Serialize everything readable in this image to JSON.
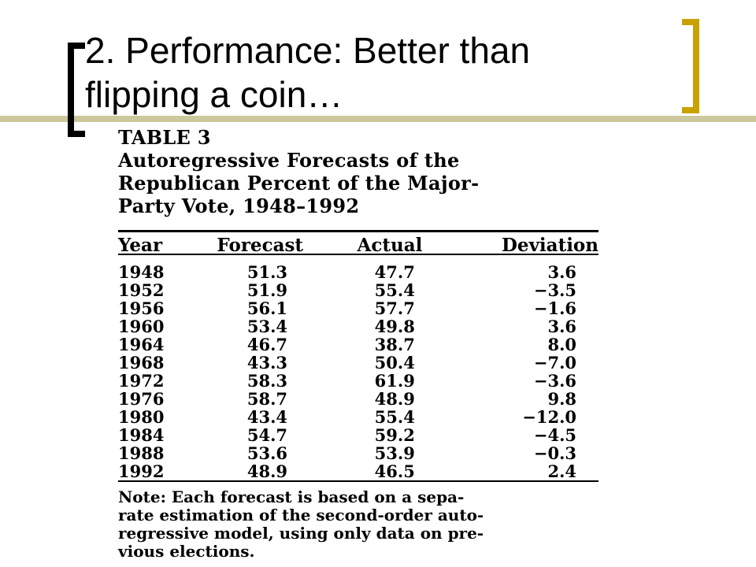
{
  "slide": {
    "title_lines": [
      "2. Performance: Better than",
      "flipping a coin…"
    ],
    "colors": {
      "left_bracket": "#000000",
      "right_bracket": "#c9a200",
      "rule_bar": "#cbc99b"
    }
  },
  "table": {
    "caption_lines": [
      "TABLE 3",
      "Autoregressive Forecasts of the",
      "Republican Percent of the Major-",
      "Party Vote, 1948–1992"
    ],
    "headers": {
      "year": "Year",
      "forecast": "Forecast",
      "actual": "Actual",
      "deviation": "Deviation"
    },
    "rows": [
      {
        "year": "1948",
        "forecast": "51.3",
        "actual": "47.7",
        "deviation": "3.6"
      },
      {
        "year": "1952",
        "forecast": "51.9",
        "actual": "55.4",
        "deviation": "−3.5"
      },
      {
        "year": "1956",
        "forecast": "56.1",
        "actual": "57.7",
        "deviation": "−1.6"
      },
      {
        "year": "1960",
        "forecast": "53.4",
        "actual": "49.8",
        "deviation": "3.6"
      },
      {
        "year": "1964",
        "forecast": "46.7",
        "actual": "38.7",
        "deviation": "8.0"
      },
      {
        "year": "1968",
        "forecast": "43.3",
        "actual": "50.4",
        "deviation": "−7.0"
      },
      {
        "year": "1972",
        "forecast": "58.3",
        "actual": "61.9",
        "deviation": "−3.6"
      },
      {
        "year": "1976",
        "forecast": "58.7",
        "actual": "48.9",
        "deviation": "9.8"
      },
      {
        "year": "1980",
        "forecast": "43.4",
        "actual": "55.4",
        "deviation": "−12.0"
      },
      {
        "year": "1984",
        "forecast": "54.7",
        "actual": "59.2",
        "deviation": "−4.5"
      },
      {
        "year": "1988",
        "forecast": "53.6",
        "actual": "53.9",
        "deviation": "−0.3"
      },
      {
        "year": "1992",
        "forecast": "48.9",
        "actual": "46.5",
        "deviation": "2.4"
      }
    ],
    "note_lines": [
      "Note: Each forecast is based on a sepa-",
      "rate estimation of the second-order auto-",
      "regressive model, using only data on pre-",
      "vious elections."
    ]
  }
}
